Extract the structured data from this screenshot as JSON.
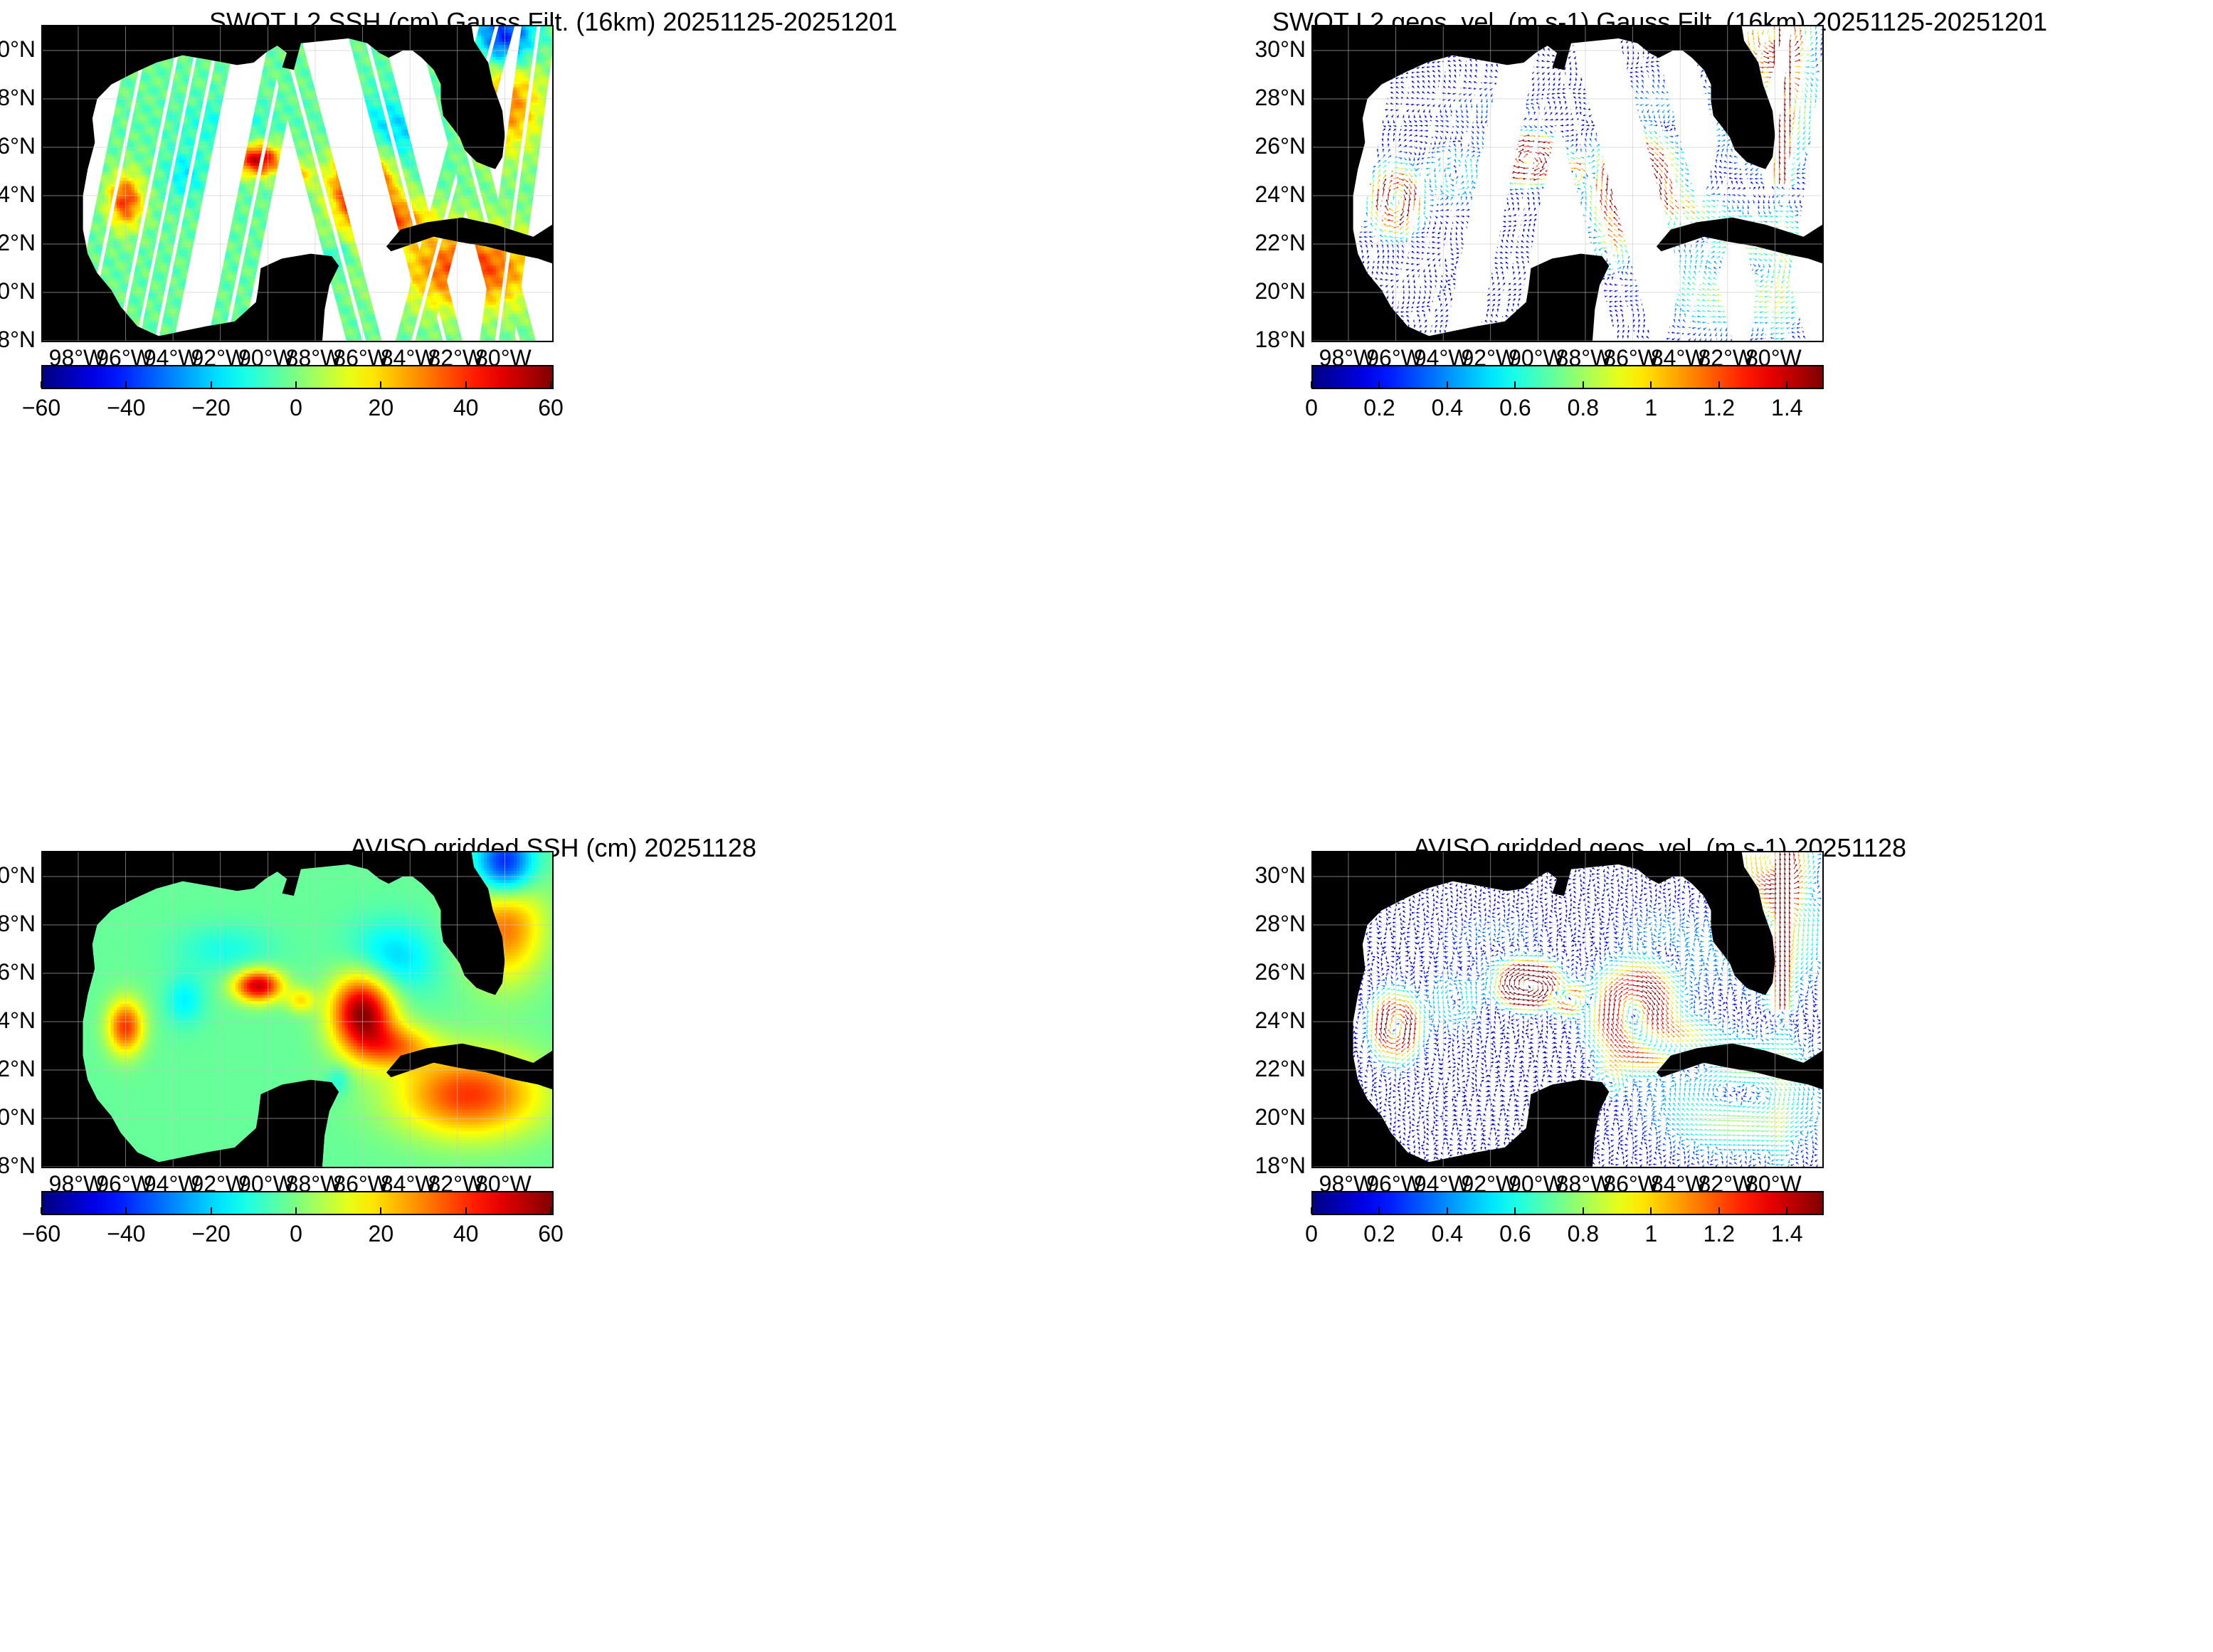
{
  "panels": [
    {
      "id": "swot-ssh",
      "title": "SWOT L2 SSH (cm) Gauss Filt. (16km) 20251125-20251201",
      "kind": "ssh-swath",
      "colorbar": {
        "colormap": "jet",
        "min": -60,
        "max": 60,
        "ticks": [
          "−60",
          "−40",
          "−20",
          "0",
          "20",
          "40",
          "60"
        ]
      }
    },
    {
      "id": "swot-vel",
      "title": "SWOT L2 geos. vel. (m s-1) Gauss Filt. (16km) 20251125-20251201",
      "kind": "vel-swath",
      "colorbar": {
        "colormap": "jet",
        "min": 0,
        "max": 1.5,
        "ticks": [
          "0",
          "0.2",
          "0.4",
          "0.6",
          "0.8",
          "1",
          "1.2",
          "1.4"
        ]
      }
    },
    {
      "id": "aviso-ssh",
      "title": "AVISO gridded SSH (cm) 20251128",
      "kind": "ssh-grid",
      "colorbar": {
        "colormap": "jet",
        "min": -60,
        "max": 60,
        "ticks": [
          "−60",
          "−40",
          "−20",
          "0",
          "20",
          "40",
          "60"
        ]
      }
    },
    {
      "id": "aviso-vel",
      "title": "AVISO gridded geos. vel. (m s-1)  20251128",
      "kind": "vel-grid",
      "colorbar": {
        "colormap": "jet",
        "min": 0,
        "max": 1.5,
        "ticks": [
          "0",
          "0.2",
          "0.4",
          "0.6",
          "0.8",
          "1",
          "1.2",
          "1.4"
        ]
      }
    }
  ],
  "axes": {
    "lat_range": [
      18,
      31
    ],
    "lon_range": [
      -99.5,
      -78
    ],
    "lat_ticks": [
      {
        "value": 30,
        "label": "30°N"
      },
      {
        "value": 28,
        "label": "28°N"
      },
      {
        "value": 26,
        "label": "26°N"
      },
      {
        "value": 24,
        "label": "24°N"
      },
      {
        "value": 22,
        "label": "22°N"
      },
      {
        "value": 20,
        "label": "20°N"
      },
      {
        "value": 18,
        "label": "18°N"
      }
    ],
    "lon_ticks": [
      {
        "value": -98,
        "label": "98°W"
      },
      {
        "value": -96,
        "label": "96°W"
      },
      {
        "value": -94,
        "label": "94°W"
      },
      {
        "value": -92,
        "label": "92°W"
      },
      {
        "value": -90,
        "label": "90°W"
      },
      {
        "value": -88,
        "label": "88°W"
      },
      {
        "value": -86,
        "label": "86°W"
      },
      {
        "value": -84,
        "label": "84°W"
      },
      {
        "value": -82,
        "label": "82°W"
      },
      {
        "value": -80,
        "label": "80°W"
      }
    ],
    "grid": true
  },
  "colors": {
    "land": "#000000",
    "nodata": "#ffffff",
    "gridline": "#c8c8c8"
  },
  "features": {
    "warm_eddies": [
      {
        "name": "Loop Current eddy",
        "lon": -86.0,
        "lat": 24.4,
        "ssh_cm": 60
      },
      {
        "name": "western eddy",
        "lon": -90.4,
        "lat": 25.5,
        "ssh_cm": 52
      },
      {
        "name": "western boundary eddy",
        "lon": -96.0,
        "lat": 23.8,
        "ssh_cm": 42
      }
    ],
    "max_speed_ms": 1.5
  }
}
